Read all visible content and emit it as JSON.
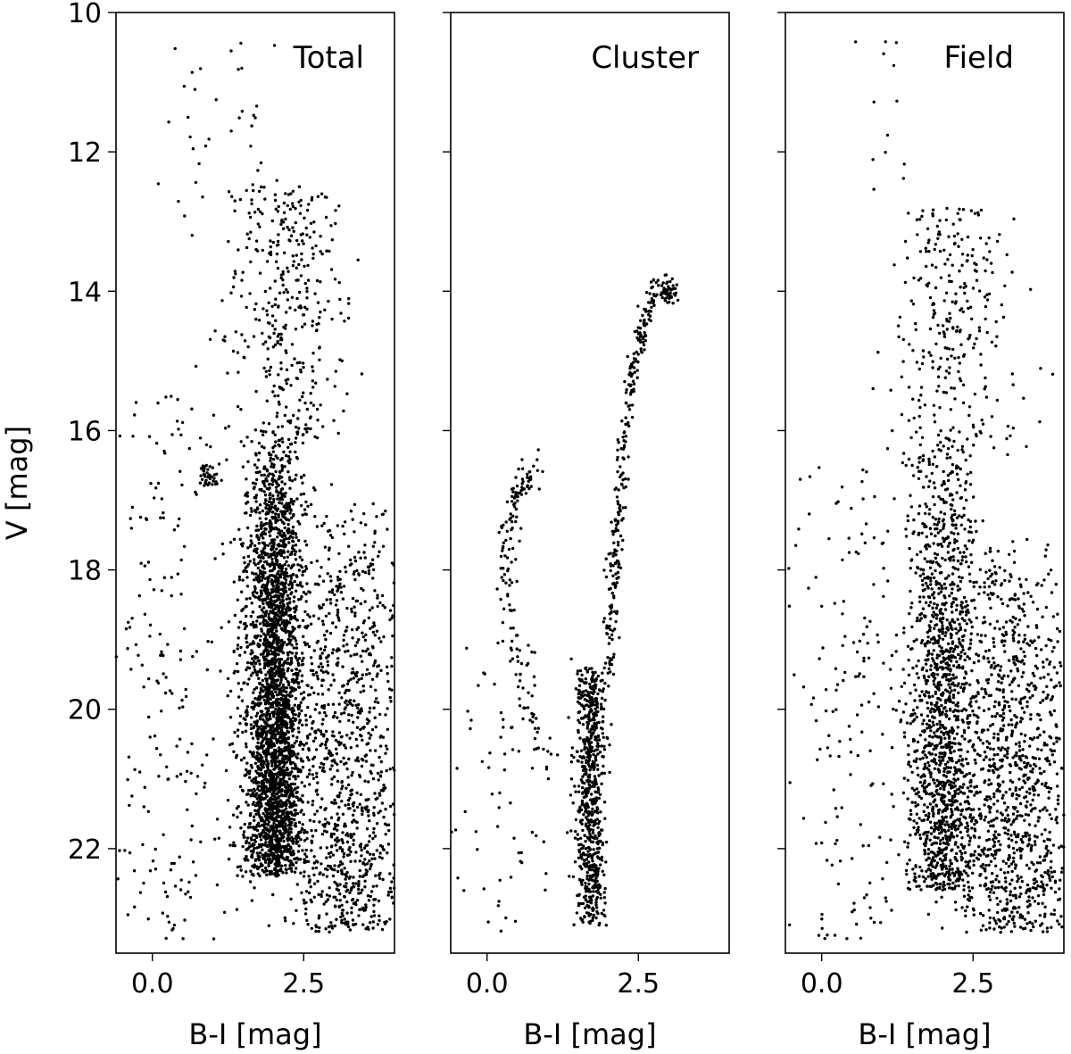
{
  "chart_data": [
    {
      "type": "scatter",
      "title": "Total",
      "xlabel": "B-I [mag]",
      "ylabel": "V [mag]",
      "xlim": [
        -0.6,
        4.0
      ],
      "ylim": [
        23.5,
        10.0
      ],
      "y_inverted": true,
      "x_ticks": [
        "0.0",
        "2.5"
      ],
      "y_ticks": [
        "10",
        "12",
        "14",
        "16",
        "18",
        "20",
        "22"
      ],
      "grid": false,
      "marker_color": "#000000",
      "components": [
        {
          "kind": "main-sequence",
          "x_center": 2.0,
          "x_spread": 0.28,
          "y_range": [
            16.0,
            22.4
          ],
          "count": 1800
        },
        {
          "kind": "dense-core",
          "x_center": 2.05,
          "x_spread": 0.18,
          "y_range": [
            16.2,
            22.2
          ],
          "count": 1200
        },
        {
          "kind": "red-field",
          "x_center": 3.2,
          "x_spread": 0.5,
          "y_range": [
            17.0,
            23.2
          ],
          "count": 1100
        },
        {
          "kind": "giant-branch",
          "x_center": 2.2,
          "x_spread": 0.45,
          "y_range": [
            12.5,
            16.2
          ],
          "count": 380
        },
        {
          "kind": "horizontal-branch",
          "x_center": 0.9,
          "x_spread": 0.12,
          "y_range": [
            16.5,
            16.8
          ],
          "count": 40
        },
        {
          "kind": "blue-scatter",
          "x_center": 0.3,
          "x_spread": 0.5,
          "y_range": [
            15.5,
            23.3
          ],
          "count": 200
        },
        {
          "kind": "bright-stars",
          "x_center": 1.0,
          "x_spread": 0.5,
          "y_range": [
            10.4,
            13.0
          ],
          "count": 40
        }
      ]
    },
    {
      "type": "scatter",
      "title": "Cluster",
      "xlabel": "B-I [mag]",
      "xlim": [
        -0.6,
        4.0
      ],
      "ylim": [
        23.5,
        10.0
      ],
      "y_inverted": true,
      "x_ticks": [
        "0.0",
        "2.5"
      ],
      "grid": false,
      "marker_color": "#000000",
      "components": [
        {
          "kind": "main-sequence-turnoff",
          "x_center": 1.7,
          "x_spread": 0.12,
          "y_range": [
            19.4,
            23.1
          ],
          "count": 700
        },
        {
          "kind": "red-giant-branch",
          "x_path": [
            [
              2.0,
              19.5
            ],
            [
              2.1,
              18.0
            ],
            [
              2.2,
              16.8
            ],
            [
              2.35,
              15.5
            ],
            [
              2.55,
              14.6
            ],
            [
              2.8,
              14.0
            ],
            [
              3.1,
              14.0
            ]
          ],
          "spread": 0.06,
          "count": 320
        },
        {
          "kind": "horizontal-branch",
          "x_path": [
            [
              0.8,
              16.6
            ],
            [
              0.5,
              16.8
            ],
            [
              0.35,
              17.3
            ],
            [
              0.3,
              18.0
            ],
            [
              0.4,
              19.0
            ],
            [
              0.7,
              20.0
            ],
            [
              1.1,
              21.0
            ]
          ],
          "spread": 0.08,
          "count": 160
        },
        {
          "kind": "blue-scatter",
          "x_center": 0.3,
          "x_spread": 0.45,
          "y_range": [
            19.0,
            23.3
          ],
          "count": 60
        }
      ]
    },
    {
      "type": "scatter",
      "title": "Field",
      "xlabel": "B-I [mag]",
      "xlim": [
        -0.6,
        4.0
      ],
      "ylim": [
        23.5,
        10.0
      ],
      "y_inverted": true,
      "x_ticks": [
        "0.0",
        "2.5"
      ],
      "grid": false,
      "marker_color": "#000000",
      "components": [
        {
          "kind": "main-sequence",
          "x_center": 2.0,
          "x_spread": 0.3,
          "y_range": [
            16.2,
            22.6
          ],
          "count": 1500
        },
        {
          "kind": "red-field",
          "x_center": 3.2,
          "x_spread": 0.5,
          "y_range": [
            17.5,
            23.2
          ],
          "count": 1100
        },
        {
          "kind": "giant-branch",
          "x_center": 2.2,
          "x_spread": 0.5,
          "y_range": [
            12.8,
            16.4
          ],
          "count": 300
        },
        {
          "kind": "blue-scatter",
          "x_center": 0.5,
          "x_spread": 0.55,
          "y_range": [
            16.5,
            23.3
          ],
          "count": 160
        },
        {
          "kind": "bright-stars",
          "x_center": 1.2,
          "x_spread": 0.6,
          "y_range": [
            10.4,
            13.0
          ],
          "count": 15
        }
      ]
    }
  ]
}
